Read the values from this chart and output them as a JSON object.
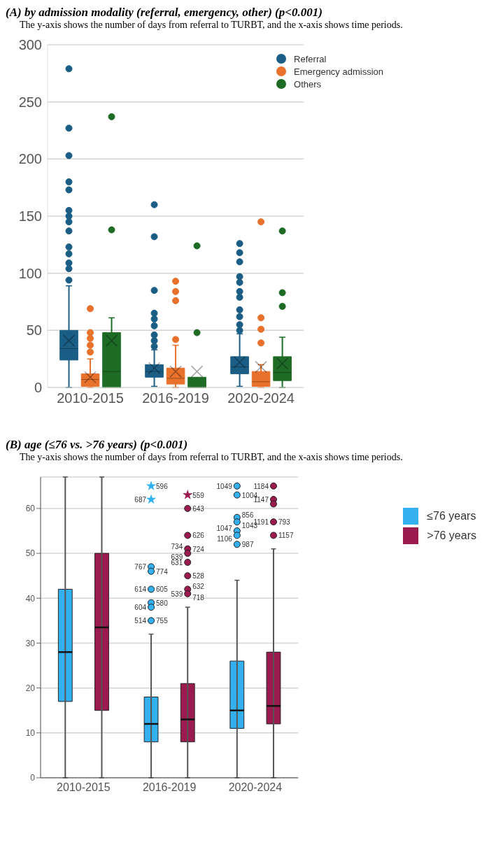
{
  "chart_data": [
    {
      "type": "box",
      "title": "(A) by admission modality (referral, emergency, other) (p<0.001)",
      "subtitle": "The y-axis shows the number of days from referral to TURBT, and the x-axis shows time periods.",
      "categories": [
        "2010-2015",
        "2016-2019",
        "2020-2024"
      ],
      "ylim": [
        0,
        300
      ],
      "yticks": [
        0,
        50,
        100,
        150,
        200,
        250,
        300
      ],
      "grid": "y",
      "legend": "top right",
      "marker": "circle",
      "series": [
        {
          "name": "Referral",
          "color": "#1b5e85",
          "boxes": [
            {
              "low": 0,
              "q1": 24,
              "median": 34,
              "q3": 50,
              "high": 89,
              "mean": 41,
              "outliers": [
                279,
                227,
                203,
                180,
                173,
                155,
                150,
                145,
                137,
                123,
                117,
                109,
                104,
                94
              ]
            },
            {
              "low": 1,
              "q1": 9,
              "median": 14,
              "q3": 20,
              "high": 33,
              "mean": 17,
              "outliers": [
                160,
                132,
                85,
                65,
                60,
                54,
                46,
                41,
                36
              ]
            },
            {
              "low": 1,
              "q1": 12,
              "median": 18,
              "q3": 27,
              "high": 47,
              "mean": 22,
              "outliers": [
                126,
                118,
                110,
                97,
                92,
                84,
                79,
                68,
                62,
                55,
                50
              ]
            }
          ]
        },
        {
          "name": "Emergency admission",
          "color": "#e8712c",
          "boxes": [
            {
              "low": 0,
              "q1": 1,
              "median": 7,
              "q3": 12,
              "high": 25,
              "mean": 9,
              "outliers": [
                69,
                48,
                43,
                37,
                31
              ]
            },
            {
              "low": 0,
              "q1": 3,
              "median": 8,
              "q3": 17,
              "high": 37,
              "mean": 14,
              "outliers": [
                93,
                84,
                76,
                42
              ]
            },
            {
              "low": 0,
              "q1": 1,
              "median": 5,
              "q3": 14,
              "high": 20,
              "mean": 18,
              "outliers": [
                145,
                61,
                51,
                39
              ]
            }
          ]
        },
        {
          "name": "Others",
          "color": "#1e6b26",
          "boxes": [
            {
              "low": 0,
              "q1": 0,
              "median": 14,
              "q3": 48,
              "high": 61,
              "mean": 41,
              "outliers": [
                237,
                138
              ]
            },
            {
              "low": 0,
              "q1": 0,
              "median": 0,
              "q3": 9,
              "high": 9,
              "mean": 14,
              "outliers": [
                124,
                48
              ]
            },
            {
              "low": 0,
              "q1": 6,
              "median": 13,
              "q3": 27,
              "high": 44,
              "mean": 21,
              "outliers": [
                137,
                83,
                71
              ]
            }
          ]
        }
      ]
    },
    {
      "type": "box",
      "title": "(B) age (≤76 vs. >76 years) (p<0.001)",
      "subtitle": "The y-axis shows the number of days from referral to TURBT, and the x-axis shows time periods.",
      "categories": [
        "2010-2015",
        "2016-2019",
        "2020-2024"
      ],
      "ylim": [
        0,
        67
      ],
      "yticks": [
        0,
        10,
        20,
        30,
        40,
        50,
        60
      ],
      "grid": "y",
      "legend": "right",
      "series": [
        {
          "name": "≤76 years",
          "color": "#33b0f0",
          "boxes": [
            {
              "low": 0,
              "q1": 17,
              "median": 28,
              "q3": 42,
              "high": 67
            },
            {
              "low": 0,
              "q1": 8,
              "median": 12,
              "q3": 18,
              "high": 32,
              "outliers": [
                47,
                46,
                42,
                39,
                38,
                35
              ]
            },
            {
              "low": 0,
              "q1": 11,
              "median": 15,
              "q3": 26,
              "high": 44,
              "outliers": [
                65,
                63,
                58,
                57,
                55,
                54,
                52
              ]
            }
          ]
        },
        {
          "name": ">76 years",
          "color": "#9c1b4f",
          "boxes": [
            {
              "low": 0,
              "q1": 15,
              "median": 33.5,
              "q3": 50,
              "high": 67
            },
            {
              "low": 0,
              "q1": 8,
              "median": 13,
              "q3": 21,
              "high": 38,
              "outliers": [
                60,
                54,
                51,
                50,
                48,
                45,
                42,
                41
              ]
            },
            {
              "low": 0,
              "q1": 12,
              "median": 16,
              "q3": 28,
              "high": 51,
              "outliers": [
                65,
                62,
                61,
                57,
                54
              ]
            }
          ]
        },
        {
          "type": "scatter",
          "color": "#33b0f0",
          "marker": "star",
          "x": [
            "2016-2019",
            "2016-2019"
          ],
          "values": [
            65,
            62
          ]
        },
        {
          "type": "scatter",
          "color": "#9c1b4f",
          "marker": "star",
          "x": [
            "2016-2019"
          ],
          "values": [
            63
          ]
        }
      ],
      "annotations": [
        "687",
        "596",
        "767",
        "774",
        "614",
        "605",
        "580",
        "604",
        "514",
        "755",
        "559",
        "643",
        "626",
        "734",
        "724",
        "639",
        "631",
        "528",
        "632",
        "539",
        "718",
        "1049",
        "1004",
        "856",
        "1043",
        "1047",
        "1106",
        "987",
        "1184",
        "1147",
        "1191",
        "793",
        "1157"
      ]
    }
  ]
}
